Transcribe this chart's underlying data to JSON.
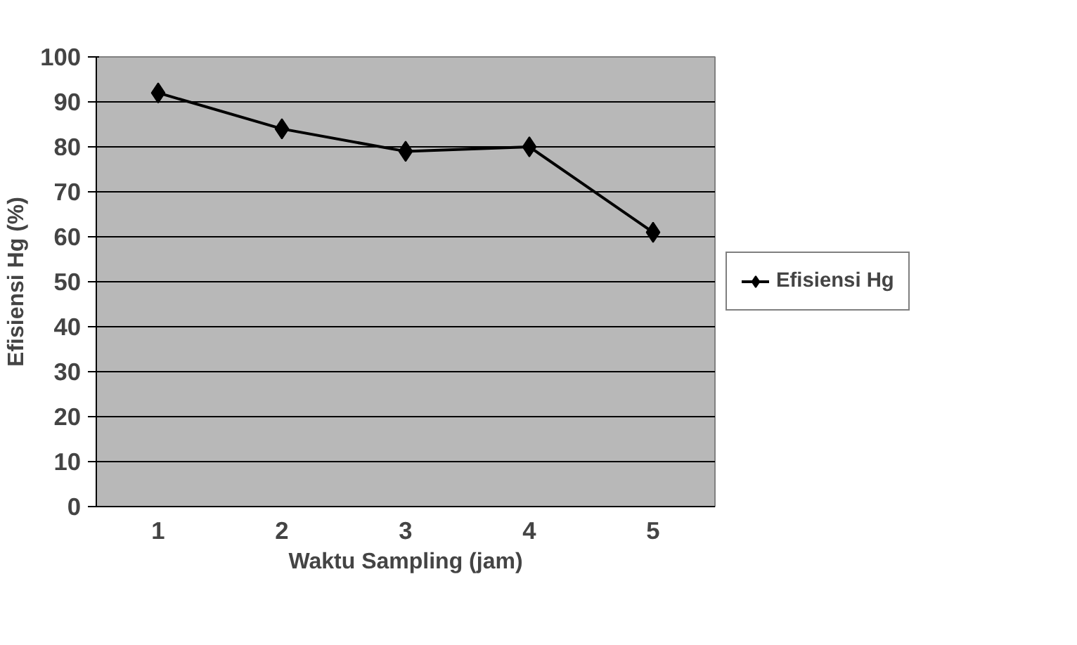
{
  "chart_data": {
    "type": "line",
    "xlabel": "Waktu Sampling (jam)",
    "ylabel": "Efisiensi Hg (%)",
    "categories": [
      "1",
      "2",
      "3",
      "4",
      "5"
    ],
    "series": [
      {
        "name": "Efisiensi Hg",
        "color": "#000000",
        "values": [
          92,
          84,
          79,
          80,
          61
        ]
      }
    ],
    "ylim": [
      0,
      100
    ],
    "yticks": [
      0,
      10,
      20,
      30,
      40,
      50,
      60,
      70,
      80,
      90,
      100
    ],
    "grid": "y",
    "legend": "right",
    "marker": "diamond",
    "line_style": "solid"
  }
}
